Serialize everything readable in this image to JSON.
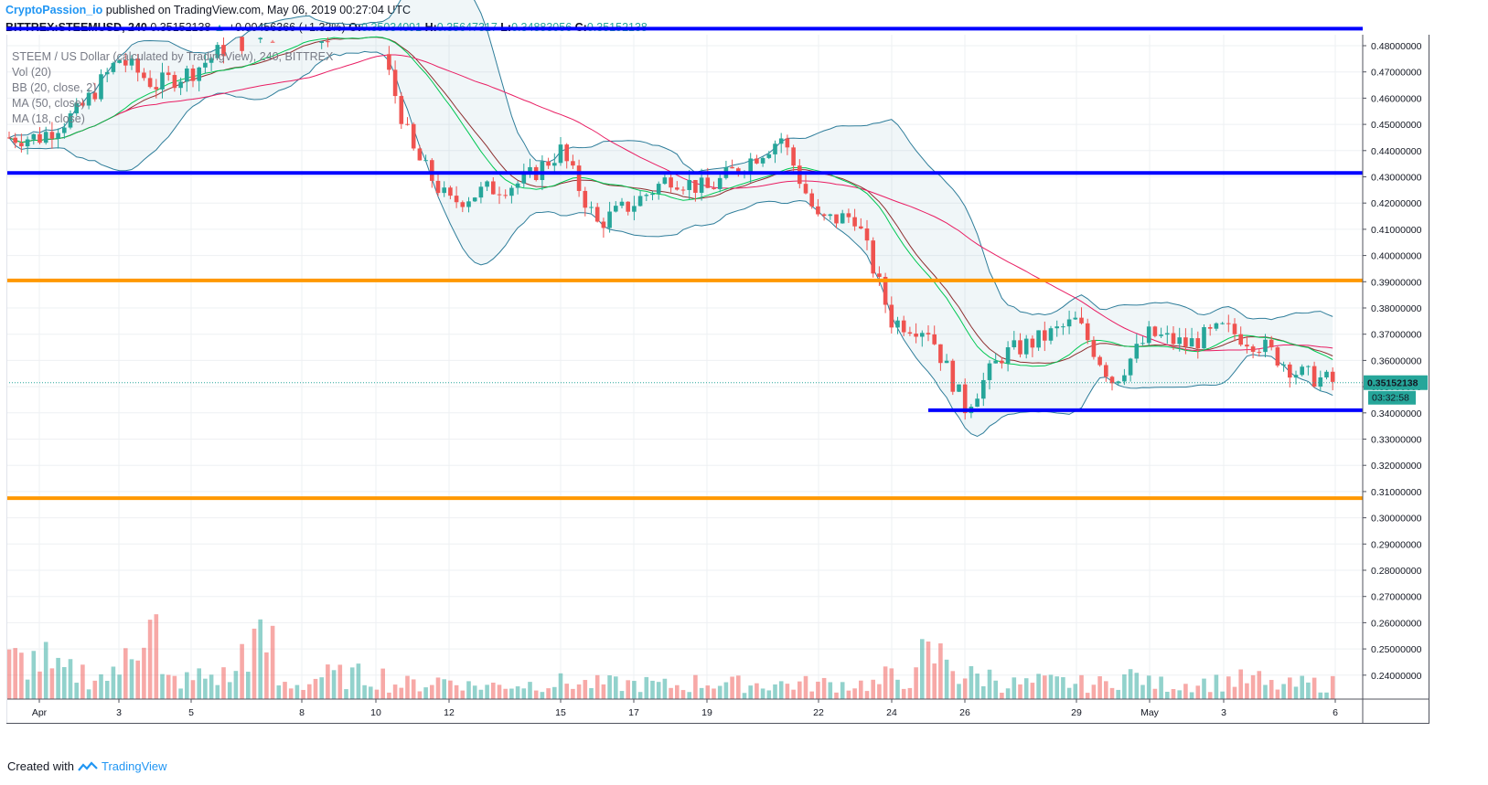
{
  "header": {
    "brand": "CryptoPassion_io",
    "published": "published on TradingView.com, May 06, 2019 00:27:04 UTC"
  },
  "ohlc": {
    "symbol": "BITTREX:STEEMUSD, 240",
    "price": "0.35152138",
    "change": "+0.00456366 (+1.32%)",
    "o_label": "O:",
    "o": "0.35034091",
    "h_label": "H:",
    "h": "0.35647317",
    "l_label": "L:",
    "l": "0.34883056",
    "c_label": "C:",
    "c": "0.35152138"
  },
  "legend": [
    "STEEM / US Dollar (calculated by TradingView), 240, BITTREX",
    "Vol (20)",
    "BB (20, close, 2)",
    "MA (50, close)",
    "MA (18, close)"
  ],
  "footer": {
    "created_with": "Created with",
    "tradingview": "TradingView"
  },
  "colors": {
    "up": "#26a69a",
    "down": "#ef5350",
    "support_resistance_blue": "#0000ff",
    "level_orange": "#ff9800",
    "ma18": "#00c853",
    "ma50": "#e91e63",
    "bb": "#2e7d9a"
  },
  "chart_data": {
    "type": "candlestick",
    "ylim": [
      0.235,
      0.49
    ],
    "y_ticks": [
      "0.48000000",
      "0.47000000",
      "0.46000000",
      "0.45000000",
      "0.44000000",
      "0.43000000",
      "0.42000000",
      "0.41000000",
      "0.40000000",
      "0.39000000",
      "0.38000000",
      "0.37000000",
      "0.36000000",
      "0.35000000",
      "0.34000000",
      "0.33000000",
      "0.32000000",
      "0.31000000",
      "0.30000000",
      "0.29000000",
      "0.28000000",
      "0.27000000",
      "0.26000000",
      "0.25000000",
      "0.24000000"
    ],
    "x_ticks": [
      "Apr",
      "3",
      "5",
      "8",
      "10",
      "12",
      "15",
      "17",
      "19",
      "22",
      "24",
      "26",
      "29",
      "May",
      "3",
      "6"
    ],
    "current_price_label": "0.35152138",
    "countdown_label": "03:32:58",
    "horizontal_levels": [
      {
        "value": 0.4865,
        "color": "blue",
        "from": "Apr 1",
        "to": "May 6"
      },
      {
        "value": 0.4315,
        "color": "blue",
        "from": "Apr 1",
        "to": "May 6"
      },
      {
        "value": 0.3905,
        "color": "orange",
        "from": "Apr 1",
        "to": "May 6"
      },
      {
        "value": 0.3075,
        "color": "orange",
        "from": "Apr 1",
        "to": "May 6"
      },
      {
        "value": 0.341,
        "color": "blue",
        "from": "Apr 25",
        "to": "May 6"
      }
    ],
    "price_path": [
      {
        "x": "Apr 1",
        "c": 0.445
      },
      {
        "x": "Apr 2",
        "c": 0.455
      },
      {
        "x": "Apr 3",
        "c": 0.475
      },
      {
        "x": "Apr 4",
        "c": 0.465
      },
      {
        "x": "Apr 5",
        "c": 0.47
      },
      {
        "x": "Apr 6",
        "c": 0.48
      },
      {
        "x": "Apr 8",
        "c": 0.487
      },
      {
        "x": "Apr 9",
        "c": 0.48
      },
      {
        "x": "Apr 10",
        "c": 0.485
      },
      {
        "x": "Apr 11",
        "c": 0.44
      },
      {
        "x": "Apr 12",
        "c": 0.42
      },
      {
        "x": "Apr 13",
        "c": 0.425
      },
      {
        "x": "Apr 14",
        "c": 0.428
      },
      {
        "x": "Apr 15",
        "c": 0.44
      },
      {
        "x": "Apr 16",
        "c": 0.412
      },
      {
        "x": "Apr 17",
        "c": 0.42
      },
      {
        "x": "Apr 18",
        "c": 0.43
      },
      {
        "x": "Apr 19",
        "c": 0.425
      },
      {
        "x": "Apr 20",
        "c": 0.435
      },
      {
        "x": "Apr 21",
        "c": 0.445
      },
      {
        "x": "Apr 22",
        "c": 0.413
      },
      {
        "x": "Apr 23",
        "c": 0.415
      },
      {
        "x": "Apr 24",
        "c": 0.375
      },
      {
        "x": "Apr 25",
        "c": 0.372
      },
      {
        "x": "Apr 26",
        "c": 0.342
      },
      {
        "x": "Apr 27",
        "c": 0.362
      },
      {
        "x": "Apr 28",
        "c": 0.368
      },
      {
        "x": "Apr 29",
        "c": 0.375
      },
      {
        "x": "Apr 30",
        "c": 0.352
      },
      {
        "x": "May 1",
        "c": 0.37
      },
      {
        "x": "May 2",
        "c": 0.366
      },
      {
        "x": "May 3",
        "c": 0.372
      },
      {
        "x": "May 4",
        "c": 0.366
      },
      {
        "x": "May 5",
        "c": 0.355
      },
      {
        "x": "May 6",
        "c": 0.3515
      }
    ],
    "volume_profile": [
      0.5,
      0.35,
      0.3,
      0.9,
      0.25,
      0.3,
      0.7,
      0.2,
      0.3,
      0.3,
      0.2,
      0.25,
      0.18,
      0.2,
      0.22,
      0.2,
      0.2,
      0.18,
      0.22,
      0.2,
      0.2,
      0.2,
      0.2,
      0.28,
      0.55,
      0.3,
      0.2,
      0.22,
      0.2,
      0.3,
      0.2,
      0.22,
      0.25,
      0.18,
      0.2
    ]
  }
}
